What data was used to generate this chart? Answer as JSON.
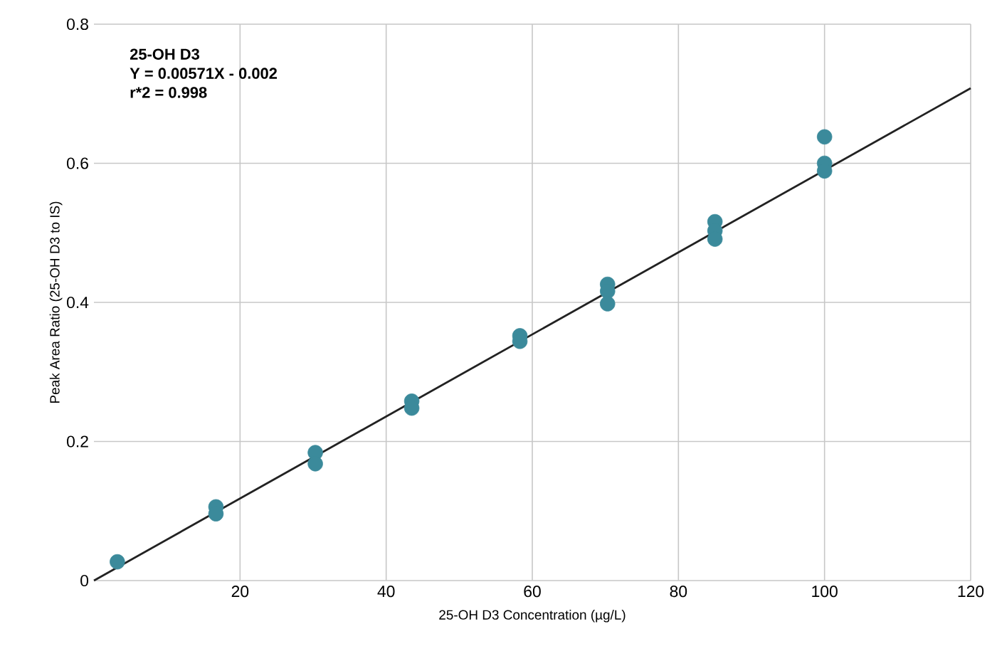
{
  "chart_data": {
    "type": "scatter",
    "xlabel": "25-OH D3 Concentration (µg/L)",
    "ylabel": "Peak Area Ratio (25-OH D3 to IS)",
    "annotations": [
      "25-OH D3",
      "Y = 0.00571X - 0.002",
      "r*2 = 0.998"
    ],
    "xlim": [
      0,
      120
    ],
    "xticks": [
      20,
      40,
      60,
      80,
      100,
      120
    ],
    "ylim": [
      0,
      0.8
    ],
    "yticks": [
      0,
      0.2,
      0.4,
      0.6,
      0.8
    ],
    "grid": true,
    "series": [
      {
        "color": "#3b8a9b",
        "marker": "circle",
        "x": [
          3.2,
          16.7,
          16.7,
          30.3,
          30.3,
          43.5,
          43.5,
          58.3,
          58.3,
          70.3,
          70.3,
          70.3,
          85,
          85,
          85,
          100,
          100,
          100
        ],
        "values": [
          0.027,
          0.106,
          0.096,
          0.184,
          0.168,
          0.258,
          0.248,
          0.352,
          0.344,
          0.426,
          0.416,
          0.398,
          0.516,
          0.503,
          0.491,
          0.638,
          0.6,
          0.589
        ]
      },
      {
        "type": "line",
        "color": "#222222",
        "marker": "none",
        "x": [
          0,
          120
        ],
        "values": [
          0,
          0.708
        ]
      }
    ]
  }
}
